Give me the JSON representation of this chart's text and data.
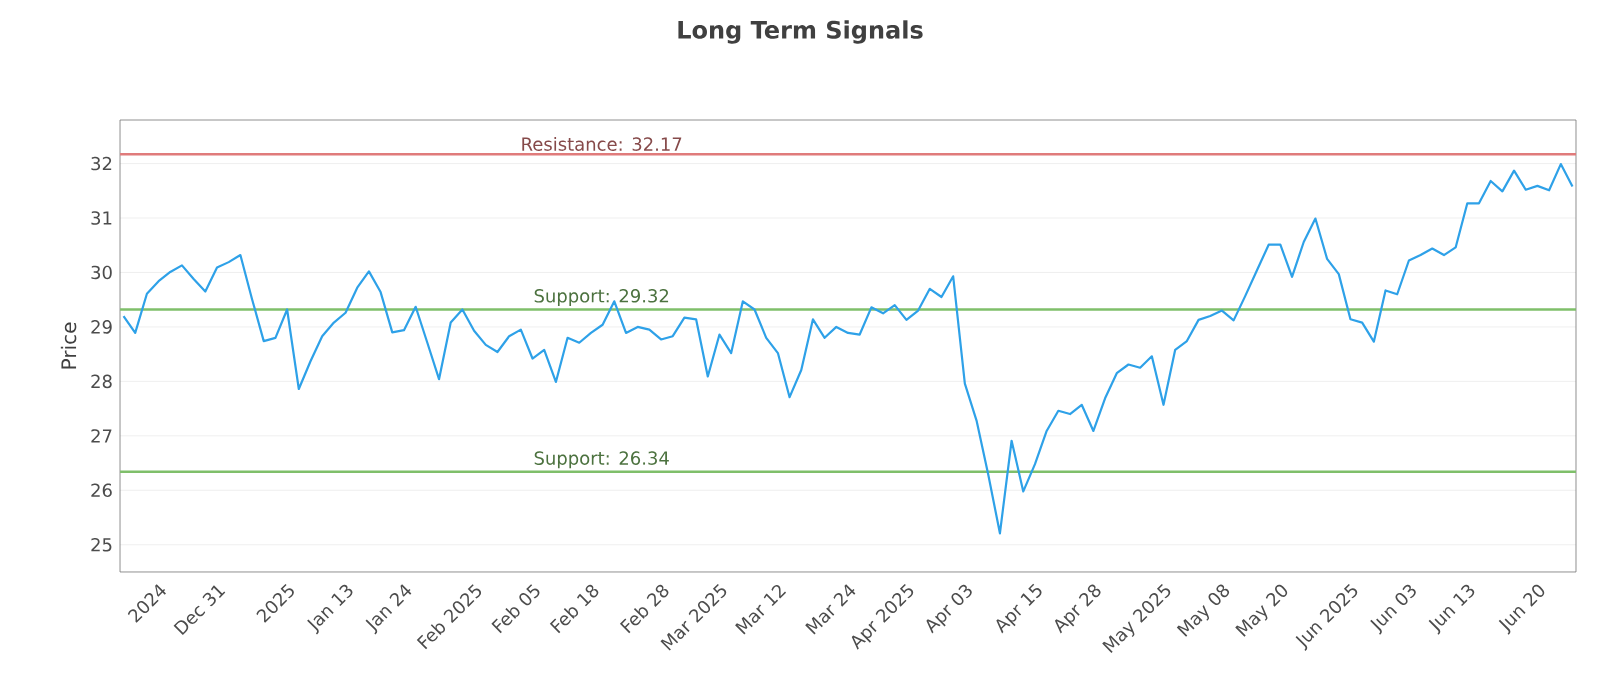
{
  "chart_data": {
    "type": "line",
    "title": "Long Term Signals",
    "ylabel": "Price",
    "categories": [
      null,
      null,
      null,
      "2024",
      null,
      null,
      null,
      null,
      "Dec 31",
      null,
      null,
      null,
      null,
      null,
      "2025",
      null,
      null,
      null,
      null,
      "Jan 13",
      null,
      null,
      null,
      null,
      "Jan 24",
      null,
      null,
      null,
      null,
      null,
      "Feb 2025",
      null,
      null,
      null,
      null,
      "Feb 05",
      null,
      null,
      null,
      null,
      "Feb 18",
      null,
      null,
      null,
      null,
      null,
      "Feb 28",
      null,
      null,
      null,
      null,
      "Mar 2025",
      null,
      null,
      null,
      null,
      "Mar 12",
      null,
      null,
      null,
      null,
      null,
      "Mar 24",
      null,
      null,
      null,
      null,
      "Apr 2025",
      null,
      null,
      null,
      null,
      "Apr 03",
      null,
      null,
      null,
      null,
      null,
      "Apr 15",
      null,
      null,
      null,
      null,
      "Apr 28",
      null,
      null,
      null,
      null,
      null,
      "May 2025",
      null,
      null,
      null,
      null,
      "May 08",
      null,
      null,
      null,
      null,
      "May 20",
      null,
      null,
      null,
      null,
      null,
      "Jun 2025",
      null,
      null,
      null,
      null,
      "Jun 03",
      null,
      null,
      null,
      null,
      "Jun 13",
      null,
      null,
      null,
      null,
      null,
      "Jun 20",
      null,
      null,
      null
    ],
    "series": [
      {
        "color": "#2ea1e8",
        "values": [
          29.2,
          28.89,
          29.61,
          29.84,
          30.01,
          30.13,
          29.88,
          29.65,
          30.09,
          30.19,
          30.32,
          29.51,
          28.74,
          28.8,
          29.32,
          27.86,
          28.37,
          28.83,
          29.08,
          29.26,
          29.72,
          30.02,
          29.64,
          28.9,
          28.94,
          29.37,
          28.71,
          28.04,
          29.08,
          29.32,
          28.93,
          28.67,
          28.54,
          28.83,
          28.95,
          28.42,
          28.58,
          27.99,
          28.8,
          28.71,
          28.89,
          29.04,
          29.47,
          28.89,
          29.0,
          28.95,
          28.77,
          28.83,
          29.17,
          29.14,
          28.09,
          28.86,
          28.52,
          29.47,
          29.32,
          28.8,
          28.52,
          27.71,
          28.21,
          29.14,
          28.8,
          29.0,
          28.89,
          28.86,
          29.36,
          29.25,
          29.4,
          29.13,
          29.3,
          29.7,
          29.55,
          29.93,
          27.96,
          27.28,
          26.29,
          25.21,
          26.91,
          25.98,
          26.48,
          27.09,
          27.46,
          27.4,
          27.57,
          27.09,
          27.69,
          28.15,
          28.31,
          28.25,
          28.46,
          27.57,
          28.58,
          28.74,
          29.13,
          29.2,
          29.3,
          29.12,
          29.57,
          30.04,
          30.51,
          30.51,
          29.92,
          30.56,
          30.99,
          30.25,
          29.97,
          29.14,
          29.08,
          28.73,
          29.67,
          29.6,
          30.22,
          30.32,
          30.44,
          30.32,
          30.46,
          31.27,
          31.27,
          31.68,
          31.49,
          31.87,
          31.52,
          31.59,
          31.51,
          31.99,
          31.58
        ]
      }
    ],
    "ylim": [
      24.5,
      32.8
    ],
    "yticks": [
      25,
      26,
      27,
      28,
      29,
      30,
      31,
      32
    ],
    "grid": "y",
    "marker": "none",
    "line_style": "solid",
    "ref_lines": [
      {
        "axis": "y",
        "value": 32.17,
        "label": "Resistance: 32.17",
        "color": "#e07b7b"
      },
      {
        "axis": "y",
        "value": 29.32,
        "label": "Support: 29.32",
        "color": "#7fbf6a"
      },
      {
        "axis": "y",
        "value": 26.34,
        "label": "Support: 26.34",
        "color": "#7fbf6a"
      }
    ]
  }
}
